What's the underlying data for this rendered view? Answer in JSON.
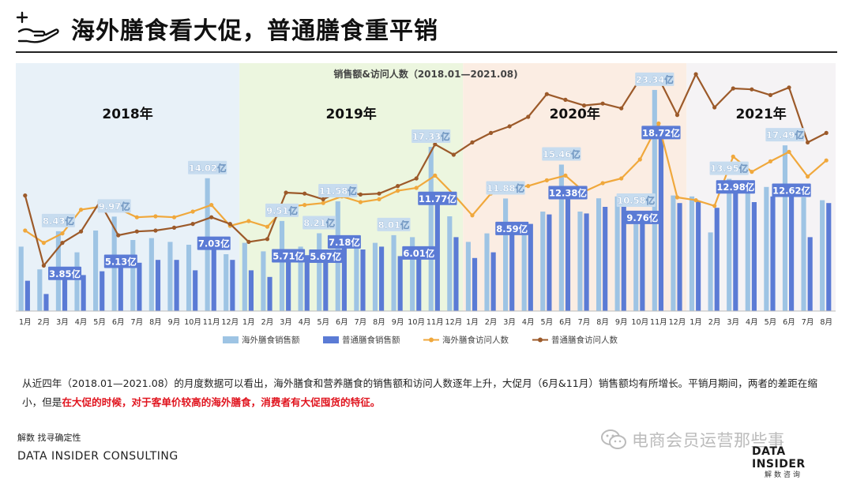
{
  "header": {
    "title": "海外膳食看大促，普通膳食重平销"
  },
  "chart_data": {
    "type": "bar",
    "title": "销售额&访问人数（2018.01—2021.08)",
    "categories": [
      "1月",
      "2月",
      "3月",
      "4月",
      "5月",
      "6月",
      "7月",
      "8月",
      "9月",
      "10月",
      "11月",
      "12月",
      "1月",
      "2月",
      "3月",
      "4月",
      "5月",
      "6月",
      "7月",
      "8月",
      "9月",
      "10月",
      "11月",
      "12月",
      "1月",
      "2月",
      "3月",
      "4月",
      "5月",
      "6月",
      "7月",
      "8月",
      "9月",
      "10月",
      "11月",
      "12月",
      "1月",
      "2月",
      "3月",
      "4月",
      "5月",
      "6月",
      "7月",
      "8月"
    ],
    "years": [
      {
        "label": "2018年",
        "start": 0,
        "end": 11,
        "color": "#e8f1f8"
      },
      {
        "label": "2019年",
        "start": 12,
        "end": 23,
        "color": "#ecf6df"
      },
      {
        "label": "2020年",
        "start": 24,
        "end": 35,
        "color": "#fbede3"
      },
      {
        "label": "2021年",
        "start": 36,
        "end": 43,
        "color": "#f5f3f5"
      }
    ],
    "ylim": [
      0,
      25
    ],
    "series": [
      {
        "name": "海外膳食销售额",
        "kind": "bar",
        "color": "#9ec4e4",
        "values": [
          6.8,
          4.4,
          8.43,
          6.2,
          8.5,
          9.97,
          7.5,
          7.7,
          7.3,
          7.0,
          14.02,
          6.0,
          7.2,
          6.3,
          9.51,
          6.8,
          8.21,
          11.58,
          8.0,
          7.2,
          8.01,
          7.8,
          17.33,
          10.0,
          7.3,
          8.2,
          11.88,
          9.3,
          10.5,
          15.46,
          10.5,
          11.9,
          12.1,
          10.58,
          23.34,
          12.2,
          12.1,
          8.3,
          13.95,
          12.5,
          13.1,
          17.49,
          12.0,
          11.7
        ]
      },
      {
        "name": "普通膳食销售额",
        "kind": "bar",
        "color": "#5b7bd5",
        "values": [
          3.2,
          1.8,
          3.85,
          3.8,
          4.2,
          5.13,
          5.1,
          5.4,
          5.4,
          4.3,
          7.03,
          5.4,
          4.3,
          3.6,
          5.71,
          5.9,
          5.67,
          7.18,
          6.5,
          6.8,
          5.8,
          6.01,
          11.77,
          7.8,
          5.6,
          6.2,
          8.59,
          9.2,
          10.2,
          12.38,
          10.3,
          11.0,
          11.0,
          9.76,
          18.72,
          11.4,
          11.6,
          10.9,
          12.98,
          11.5,
          12.1,
          12.62,
          7.8,
          11.4
        ]
      },
      {
        "name": "海外膳食访问人数",
        "kind": "line",
        "color": "#f0a83c",
        "values": [
          8.5,
          7.2,
          8.2,
          10.7,
          11.0,
          10.8,
          9.9,
          10.0,
          9.9,
          10.5,
          11.2,
          9.0,
          9.5,
          8.9,
          11.0,
          11.2,
          11.4,
          12.1,
          11.5,
          11.8,
          12.7,
          13.0,
          14.3,
          12.3,
          10.1,
          12.4,
          13.0,
          13.2,
          13.8,
          14.3,
          12.6,
          13.5,
          14.0,
          16.0,
          19.8,
          12.0,
          11.7,
          11.1,
          16.3,
          14.7,
          15.8,
          16.8,
          14.2,
          15.9
        ]
      },
      {
        "name": "普通膳食访问人数",
        "kind": "line",
        "color": "#9c5a2a",
        "values": [
          12.2,
          4.8,
          7.2,
          8.4,
          11.5,
          8.0,
          8.4,
          8.5,
          8.8,
          9.2,
          9.9,
          9.2,
          7.3,
          7.6,
          12.5,
          12.4,
          11.8,
          12.7,
          12.3,
          12.4,
          13.2,
          14.0,
          17.6,
          16.5,
          17.8,
          18.8,
          19.5,
          20.5,
          22.9,
          22.3,
          21.7,
          21.9,
          21.4,
          24.5,
          24.6,
          20.7,
          25.0,
          21.5,
          23.5,
          23.4,
          22.8,
          23.6,
          17.8,
          18.8
        ]
      }
    ],
    "data_labels": [
      {
        "series": 0,
        "index": 2,
        "text": "8.43亿"
      },
      {
        "series": 1,
        "index": 2,
        "text": "3.85亿"
      },
      {
        "series": 0,
        "index": 5,
        "text": "9.97亿"
      },
      {
        "series": 1,
        "index": 5,
        "text": "5.13亿"
      },
      {
        "series": 0,
        "index": 10,
        "text": "14.02亿"
      },
      {
        "series": 1,
        "index": 10,
        "text": "7.03亿"
      },
      {
        "series": 0,
        "index": 14,
        "text": "9.51亿"
      },
      {
        "series": 1,
        "index": 14,
        "text": "5.71亿"
      },
      {
        "series": 0,
        "index": 16,
        "text": "8.21亿"
      },
      {
        "series": 1,
        "index": 16,
        "text": "5.67亿"
      },
      {
        "series": 0,
        "index": 17,
        "text": "11.58亿"
      },
      {
        "series": 1,
        "index": 17,
        "text": "7.18亿"
      },
      {
        "series": 0,
        "index": 20,
        "text": "8.01亿"
      },
      {
        "series": 1,
        "index": 21,
        "text": "6.01亿"
      },
      {
        "series": 0,
        "index": 22,
        "text": "17.33亿"
      },
      {
        "series": 1,
        "index": 22,
        "text": "11.77亿"
      },
      {
        "series": 0,
        "index": 26,
        "text": "11.88亿"
      },
      {
        "series": 1,
        "index": 26,
        "text": "8.59亿"
      },
      {
        "series": 0,
        "index": 29,
        "text": "15.46亿"
      },
      {
        "series": 1,
        "index": 29,
        "text": "12.38亿"
      },
      {
        "series": 0,
        "index": 33,
        "text": "10.58亿"
      },
      {
        "series": 1,
        "index": 33,
        "text": "9.76亿"
      },
      {
        "series": 0,
        "index": 34,
        "text": "23.34亿"
      },
      {
        "series": 1,
        "index": 34,
        "text": "18.72亿"
      },
      {
        "series": 0,
        "index": 38,
        "text": "13.95亿"
      },
      {
        "series": 1,
        "index": 38,
        "text": "12.98亿"
      },
      {
        "series": 0,
        "index": 41,
        "text": "17.49亿"
      },
      {
        "series": 1,
        "index": 41,
        "text": "12.62亿"
      }
    ],
    "legend_position": "bottom",
    "grid": false
  },
  "summary": {
    "part1": "从近四年（2018.01—2021.08）的月度数据可以看出，海外膳食和营养膳食的销售额和访问人数逐年上升，大促月（6月&11月）销售额均有所增长。平销月期间，两者的差距在缩小，但是",
    "highlight": "在大促的时候，对于客单价较高的海外膳食，消费者有大促囤货的特征。"
  },
  "footer": {
    "tagline": "解数 找寻确定性",
    "company": "DATA INSIDER CONSULTING",
    "wechat_name": "电商会员运营那些事",
    "brand_name": "DATA INSIDER",
    "brand_sub": "解数咨询"
  }
}
